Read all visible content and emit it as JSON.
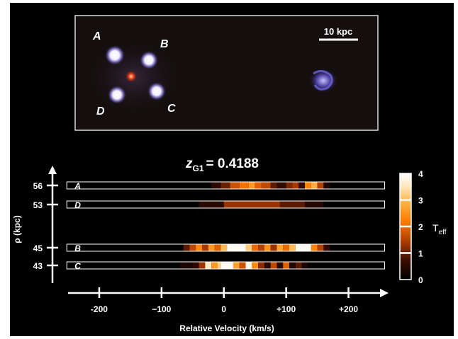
{
  "image_panel": {
    "labels": [
      "A",
      "B",
      "C",
      "D"
    ],
    "scalebar_label": "10 kpc"
  },
  "chart_data": {
    "type": "heatmap",
    "title_main": "z",
    "title_sub": "G1",
    "title_value": "= 0.4188",
    "xlabel": "Relative Velocity (km/s)",
    "ylabel": "ρ  (kpc)",
    "xlim": [
      -250,
      260
    ],
    "xticks": [
      -200,
      -100,
      0,
      100,
      200
    ],
    "xtick_labels": [
      "-200",
      "−100",
      "0",
      "+100",
      "+200"
    ],
    "colorbar": {
      "label": "T",
      "label_sub": "eff",
      "range": [
        0,
        4
      ],
      "ticks": [
        0,
        1,
        2,
        3,
        4
      ]
    },
    "rows": [
      {
        "name": "A",
        "rho": 56,
        "cells": [
          [
            -20,
            -5,
            0.5
          ],
          [
            -5,
            10,
            1.0
          ],
          [
            10,
            25,
            1.7
          ],
          [
            25,
            40,
            2.1
          ],
          [
            40,
            50,
            2.6
          ],
          [
            50,
            60,
            1.9
          ],
          [
            60,
            75,
            1.6
          ],
          [
            75,
            85,
            0.9
          ],
          [
            85,
            100,
            0.6
          ],
          [
            100,
            110,
            1.1
          ],
          [
            110,
            120,
            1.4
          ],
          [
            120,
            130,
            0.6
          ],
          [
            130,
            140,
            2.3
          ],
          [
            140,
            150,
            2.9
          ],
          [
            150,
            160,
            1.5
          ],
          [
            160,
            170,
            0.4
          ]
        ]
      },
      {
        "name": "D",
        "rho": 53,
        "cells": [
          [
            -40,
            0,
            0.5
          ],
          [
            0,
            90,
            1.3
          ],
          [
            90,
            130,
            0.9
          ],
          [
            130,
            160,
            0.4
          ]
        ]
      },
      {
        "name": "B",
        "rho": 45,
        "cells": [
          [
            -65,
            -55,
            0.9
          ],
          [
            -55,
            -45,
            1.6
          ],
          [
            -45,
            -35,
            2.4
          ],
          [
            -35,
            -25,
            1.4
          ],
          [
            -25,
            -15,
            2.6
          ],
          [
            -15,
            -5,
            1.9
          ],
          [
            -5,
            5,
            3.0
          ],
          [
            5,
            35,
            3.9
          ],
          [
            35,
            45,
            3.2
          ],
          [
            45,
            55,
            2.0
          ],
          [
            55,
            65,
            1.5
          ],
          [
            65,
            75,
            2.5
          ],
          [
            75,
            85,
            1.3
          ],
          [
            85,
            95,
            2.7
          ],
          [
            95,
            105,
            2.0
          ],
          [
            105,
            115,
            3.0
          ],
          [
            115,
            140,
            3.9
          ],
          [
            140,
            150,
            2.3
          ],
          [
            150,
            160,
            1.5
          ],
          [
            160,
            170,
            0.6
          ]
        ]
      },
      {
        "name": "C",
        "rho": 43,
        "cells": [
          [
            -70,
            -50,
            0.3
          ],
          [
            -50,
            -40,
            0.5
          ],
          [
            -40,
            -30,
            1.3
          ],
          [
            -30,
            -20,
            3.5
          ],
          [
            -20,
            -10,
            2.6
          ],
          [
            -10,
            -5,
            3.2
          ],
          [
            -5,
            15,
            3.9
          ],
          [
            15,
            25,
            2.7
          ],
          [
            25,
            35,
            1.7
          ],
          [
            35,
            45,
            3.8
          ],
          [
            45,
            55,
            2.4
          ],
          [
            55,
            65,
            1.2
          ],
          [
            65,
            75,
            0.5
          ],
          [
            75,
            85,
            1.6
          ],
          [
            85,
            95,
            0.5
          ],
          [
            95,
            105,
            1.9
          ],
          [
            105,
            115,
            0.4
          ],
          [
            115,
            125,
            0.9
          ],
          [
            125,
            135,
            0.3
          ]
        ]
      }
    ]
  }
}
